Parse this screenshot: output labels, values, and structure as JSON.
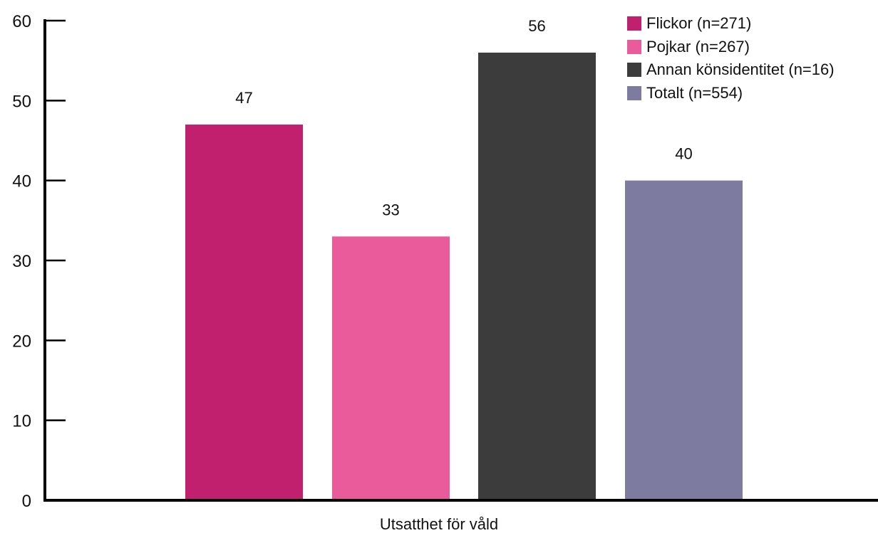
{
  "chart_data": {
    "type": "bar",
    "categories": [
      "Utsatthet för våld"
    ],
    "series": [
      {
        "name": "Flickor (n=271)",
        "values": [
          47
        ],
        "color": "#C0206E"
      },
      {
        "name": "Pojkar (n=267)",
        "values": [
          33
        ],
        "color": "#E95B9A"
      },
      {
        "name": "Annan könsidentitet (n=16)",
        "values": [
          56
        ],
        "color": "#3C3C3C"
      },
      {
        "name": "Totalt (n=554)",
        "values": [
          40
        ],
        "color": "#7E7BA0"
      }
    ],
    "value_labels": [
      "47",
      "33",
      "56",
      "40"
    ],
    "y_ticks": [
      "0",
      "10",
      "20",
      "30",
      "40",
      "50",
      "60"
    ],
    "ylim": [
      0,
      60
    ],
    "title": "",
    "xlabel": "",
    "ylabel": "",
    "grid": false,
    "legend_position": "top-right"
  }
}
